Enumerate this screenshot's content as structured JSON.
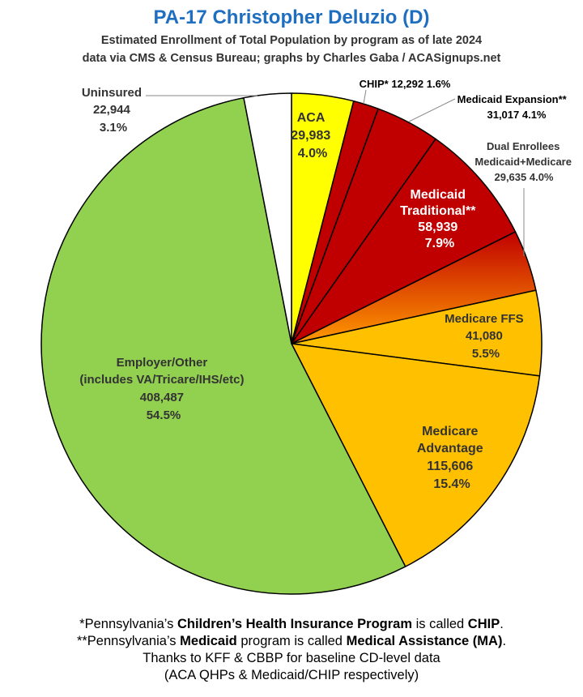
{
  "title": "PA-17 Christopher Deluzio (D)",
  "subtitle_line1": "Estimated Enrollment of Total Population by program as of late 2024",
  "subtitle_line2": "data via CMS & Census Bureau; graphs by Charles Gaba / ACASignups.net",
  "chart_data": {
    "type": "pie",
    "start": "12 o'clock",
    "direction": "clockwise",
    "slices": [
      {
        "label": "ACA",
        "value": 29983,
        "percent_label": "4.0%",
        "color": "#ffff00"
      },
      {
        "label": "CHIP*",
        "value": 12292,
        "percent_label": "1.6%",
        "color": "#c00000"
      },
      {
        "label": "Medicaid Expansion**",
        "value": 31017,
        "percent_label": "4.1%",
        "color": "#c00000"
      },
      {
        "label": "Medicaid Traditional**",
        "value": 58939,
        "percent_label": "7.9%",
        "color": "#c00000"
      },
      {
        "label": "Dual Enrollees Medicaid+Medicare",
        "value": 29635,
        "percent_label": "4.0%",
        "color": "#d35000"
      },
      {
        "label": "Medicare FFS",
        "value": 41080,
        "percent_label": "5.5%",
        "color": "#ffc000"
      },
      {
        "label": "Medicare Advantage",
        "value": 115606,
        "percent_label": "15.4%",
        "color": "#ffc000"
      },
      {
        "label": "Employer/Other (includes VA/Tricare/IHS/etc)",
        "value": 408487,
        "percent_label": "54.5%",
        "color": "#92d050"
      },
      {
        "label": "Uninsured",
        "value": 22944,
        "percent_label": "3.1%",
        "color": "#ffffff"
      }
    ],
    "labels": {
      "aca": [
        "ACA",
        "29,983",
        "4.0%"
      ],
      "chip": "CHIP* 12,292 1.6%",
      "mexp": [
        "Medicaid Expansion**",
        "31,017 4.1%"
      ],
      "dual": [
        "Dual Enrollees",
        "Medicaid+Medicare",
        "29,635 4.0%"
      ],
      "mtrad": [
        "Medicaid",
        "Traditional**",
        "58,939",
        "7.9%"
      ],
      "mffs": [
        "Medicare FFS",
        "41,080",
        "5.5%"
      ],
      "madv": [
        "Medicare",
        "Advantage",
        "115,606",
        "15.4%"
      ],
      "emp": [
        "Employer/Other",
        "(includes VA/Tricare/IHS/etc)",
        "408,487",
        "54.5%"
      ],
      "unins": [
        "Uninsured",
        "22,944",
        "3.1%"
      ]
    }
  },
  "footnotes": {
    "n1_pre": "*Pennsylvania’s ",
    "n1_b1": "Children’s Health Insurance Program",
    "n1_mid": " is called ",
    "n1_b2": "CHIP",
    "n1_end": ".",
    "n2_pre": "**Pennsylvania’s ",
    "n2_b1": "Medicaid",
    "n2_mid": " program is called ",
    "n2_b2": "Medical Assistance (MA)",
    "n2_end": ".",
    "n3": "Thanks to KFF & CBBP for baseline CD-level data",
    "n4": "(ACA QHPs & Medicaid/CHIP respectively)"
  }
}
